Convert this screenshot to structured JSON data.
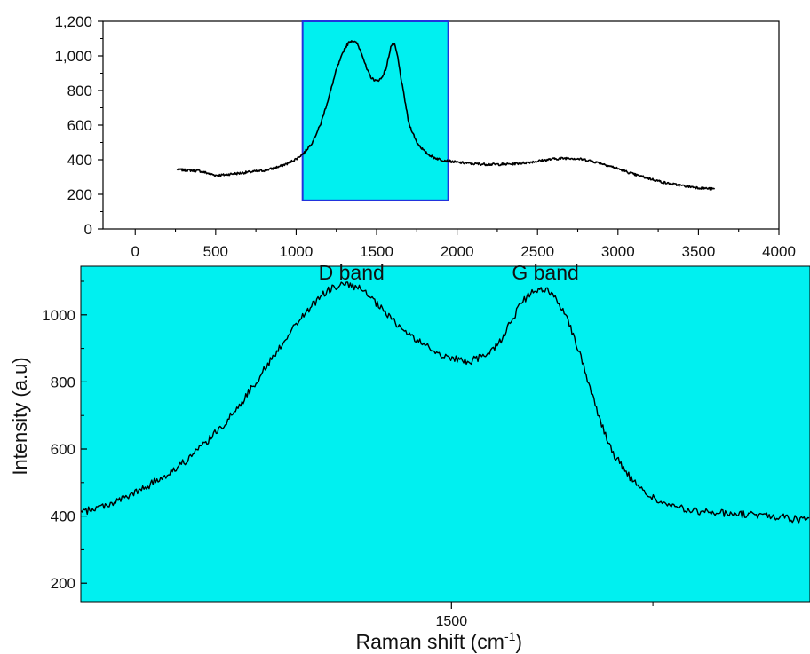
{
  "chart_data": [
    {
      "type": "line",
      "panel": "overview",
      "title": "",
      "xlabel": "",
      "ylabel": "",
      "xlim": [
        -200,
        4000
      ],
      "ylim": [
        0,
        1200
      ],
      "xticks": [
        0,
        500,
        1000,
        1500,
        2000,
        2500,
        3000,
        3500,
        4000
      ],
      "xtick_labels": [
        "0",
        "500",
        "1000",
        "1500",
        "2000",
        "2500",
        "3000",
        "3500",
        "4000"
      ],
      "yticks": [
        0,
        200,
        400,
        600,
        800,
        1000,
        1200
      ],
      "ytick_labels": [
        "0",
        "200",
        "400",
        "600",
        "800",
        "1,000",
        "1,200"
      ],
      "highlight_region": {
        "x": [
          1040,
          1945
        ],
        "y": [
          165,
          1200
        ],
        "color": "#00f0f0",
        "border": "#2233dd"
      },
      "line_color": "#000000",
      "series": [
        {
          "x": [
            260,
            300,
            350,
            400,
            450,
            500,
            550,
            600,
            650,
            700,
            750,
            800,
            850,
            900,
            950,
            1000,
            1050,
            1100,
            1150,
            1200,
            1250,
            1300,
            1330,
            1350,
            1380,
            1410,
            1440,
            1470,
            1500,
            1530,
            1560,
            1590,
            1610,
            1630,
            1650,
            1680,
            1700,
            1750,
            1800,
            1850,
            1900,
            1950,
            2000,
            2100,
            2200,
            2300,
            2400,
            2500,
            2600,
            2700,
            2800,
            2900,
            3000,
            3100,
            3200,
            3300,
            3400,
            3500,
            3600
          ],
          "y": [
            345,
            340,
            338,
            335,
            322,
            310,
            312,
            318,
            322,
            328,
            333,
            338,
            348,
            362,
            380,
            405,
            440,
            500,
            600,
            750,
            920,
            1040,
            1080,
            1090,
            1070,
            1010,
            920,
            870,
            855,
            870,
            930,
            1060,
            1070,
            1000,
            880,
            720,
            610,
            500,
            445,
            415,
            400,
            392,
            385,
            377,
            373,
            374,
            380,
            392,
            405,
            410,
            400,
            378,
            348,
            315,
            290,
            265,
            250,
            238,
            230
          ]
        }
      ]
    },
    {
      "type": "line",
      "panel": "detail",
      "title": "",
      "xlabel": "Raman shift (cm",
      "xlabel_superscript": "-1",
      "xlabel_close": ")",
      "ylabel": "Intensity (a.u)",
      "xlim": [
        1040,
        1945
      ],
      "ylim": [
        145,
        1145
      ],
      "xticks": [
        1500
      ],
      "xtick_labels": [
        "1500"
      ],
      "yticks": [
        200,
        400,
        600,
        800,
        1000
      ],
      "ytick_labels": [
        "200",
        "400",
        "600",
        "800",
        "1000"
      ],
      "background_color": "#00f0f0",
      "line_color": "#000000",
      "annotations": [
        {
          "text": "D band",
          "x": 1335,
          "y": 1100
        },
        {
          "text": "G band",
          "x": 1575,
          "y": 1100
        }
      ],
      "series": [
        {
          "x": [
            1040,
            1060,
            1080,
            1100,
            1120,
            1140,
            1160,
            1180,
            1200,
            1220,
            1240,
            1260,
            1280,
            1300,
            1320,
            1340,
            1355,
            1370,
            1385,
            1400,
            1420,
            1440,
            1460,
            1480,
            1500,
            1520,
            1540,
            1560,
            1575,
            1590,
            1600,
            1610,
            1620,
            1630,
            1640,
            1650,
            1660,
            1670,
            1680,
            1690,
            1700,
            1720,
            1740,
            1760,
            1780,
            1800,
            1830,
            1860,
            1900,
            1945
          ],
          "y": [
            410,
            425,
            440,
            460,
            485,
            515,
            545,
            585,
            630,
            680,
            740,
            810,
            880,
            950,
            1010,
            1060,
            1085,
            1090,
            1080,
            1050,
            1000,
            955,
            920,
            890,
            870,
            860,
            875,
            920,
            985,
            1045,
            1065,
            1075,
            1070,
            1050,
            1010,
            950,
            880,
            800,
            720,
            650,
            590,
            520,
            470,
            440,
            425,
            415,
            410,
            405,
            400,
            385
          ]
        }
      ]
    }
  ]
}
